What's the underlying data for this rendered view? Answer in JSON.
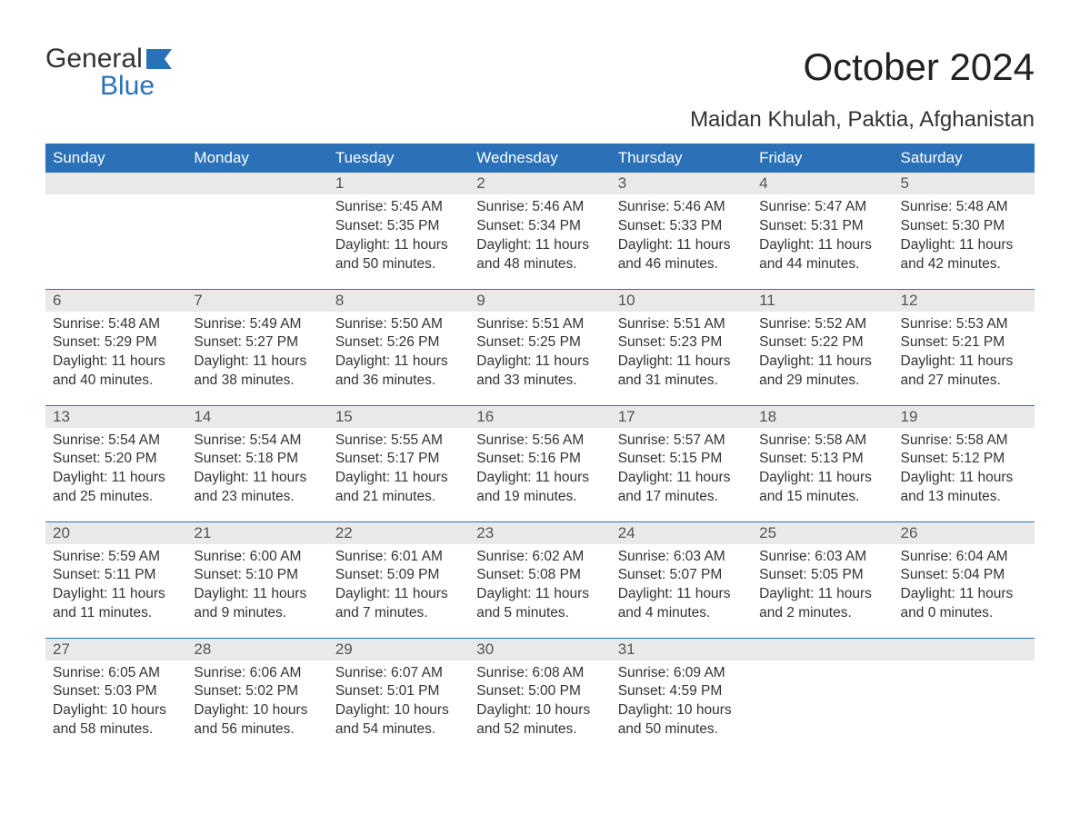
{
  "brand": {
    "word1": "General",
    "word2": "Blue",
    "accent_color": "#2a71b8"
  },
  "title": "October 2024",
  "location": "Maidan Khulah, Paktia, Afghanistan",
  "weekdays": [
    "Sunday",
    "Monday",
    "Tuesday",
    "Wednesday",
    "Thursday",
    "Friday",
    "Saturday"
  ],
  "colors": {
    "header_bg": "#2a71b8",
    "header_text": "#ffffff",
    "daynum_bg": "#e9e9e9",
    "border": "#2a71b8",
    "text": "#333333",
    "background": "#ffffff"
  },
  "typography": {
    "title_fontsize": 42,
    "subtitle_fontsize": 24,
    "weekday_fontsize": 17,
    "daynum_fontsize": 17,
    "body_fontsize": 15.5
  },
  "weeks": [
    [
      {
        "day": "",
        "sunrise": "",
        "sunset": "",
        "daylight": ""
      },
      {
        "day": "",
        "sunrise": "",
        "sunset": "",
        "daylight": ""
      },
      {
        "day": "1",
        "sunrise": "Sunrise: 5:45 AM",
        "sunset": "Sunset: 5:35 PM",
        "daylight": "Daylight: 11 hours and 50 minutes."
      },
      {
        "day": "2",
        "sunrise": "Sunrise: 5:46 AM",
        "sunset": "Sunset: 5:34 PM",
        "daylight": "Daylight: 11 hours and 48 minutes."
      },
      {
        "day": "3",
        "sunrise": "Sunrise: 5:46 AM",
        "sunset": "Sunset: 5:33 PM",
        "daylight": "Daylight: 11 hours and 46 minutes."
      },
      {
        "day": "4",
        "sunrise": "Sunrise: 5:47 AM",
        "sunset": "Sunset: 5:31 PM",
        "daylight": "Daylight: 11 hours and 44 minutes."
      },
      {
        "day": "5",
        "sunrise": "Sunrise: 5:48 AM",
        "sunset": "Sunset: 5:30 PM",
        "daylight": "Daylight: 11 hours and 42 minutes."
      }
    ],
    [
      {
        "day": "6",
        "sunrise": "Sunrise: 5:48 AM",
        "sunset": "Sunset: 5:29 PM",
        "daylight": "Daylight: 11 hours and 40 minutes."
      },
      {
        "day": "7",
        "sunrise": "Sunrise: 5:49 AM",
        "sunset": "Sunset: 5:27 PM",
        "daylight": "Daylight: 11 hours and 38 minutes."
      },
      {
        "day": "8",
        "sunrise": "Sunrise: 5:50 AM",
        "sunset": "Sunset: 5:26 PM",
        "daylight": "Daylight: 11 hours and 36 minutes."
      },
      {
        "day": "9",
        "sunrise": "Sunrise: 5:51 AM",
        "sunset": "Sunset: 5:25 PM",
        "daylight": "Daylight: 11 hours and 33 minutes."
      },
      {
        "day": "10",
        "sunrise": "Sunrise: 5:51 AM",
        "sunset": "Sunset: 5:23 PM",
        "daylight": "Daylight: 11 hours and 31 minutes."
      },
      {
        "day": "11",
        "sunrise": "Sunrise: 5:52 AM",
        "sunset": "Sunset: 5:22 PM",
        "daylight": "Daylight: 11 hours and 29 minutes."
      },
      {
        "day": "12",
        "sunrise": "Sunrise: 5:53 AM",
        "sunset": "Sunset: 5:21 PM",
        "daylight": "Daylight: 11 hours and 27 minutes."
      }
    ],
    [
      {
        "day": "13",
        "sunrise": "Sunrise: 5:54 AM",
        "sunset": "Sunset: 5:20 PM",
        "daylight": "Daylight: 11 hours and 25 minutes."
      },
      {
        "day": "14",
        "sunrise": "Sunrise: 5:54 AM",
        "sunset": "Sunset: 5:18 PM",
        "daylight": "Daylight: 11 hours and 23 minutes."
      },
      {
        "day": "15",
        "sunrise": "Sunrise: 5:55 AM",
        "sunset": "Sunset: 5:17 PM",
        "daylight": "Daylight: 11 hours and 21 minutes."
      },
      {
        "day": "16",
        "sunrise": "Sunrise: 5:56 AM",
        "sunset": "Sunset: 5:16 PM",
        "daylight": "Daylight: 11 hours and 19 minutes."
      },
      {
        "day": "17",
        "sunrise": "Sunrise: 5:57 AM",
        "sunset": "Sunset: 5:15 PM",
        "daylight": "Daylight: 11 hours and 17 minutes."
      },
      {
        "day": "18",
        "sunrise": "Sunrise: 5:58 AM",
        "sunset": "Sunset: 5:13 PM",
        "daylight": "Daylight: 11 hours and 15 minutes."
      },
      {
        "day": "19",
        "sunrise": "Sunrise: 5:58 AM",
        "sunset": "Sunset: 5:12 PM",
        "daylight": "Daylight: 11 hours and 13 minutes."
      }
    ],
    [
      {
        "day": "20",
        "sunrise": "Sunrise: 5:59 AM",
        "sunset": "Sunset: 5:11 PM",
        "daylight": "Daylight: 11 hours and 11 minutes."
      },
      {
        "day": "21",
        "sunrise": "Sunrise: 6:00 AM",
        "sunset": "Sunset: 5:10 PM",
        "daylight": "Daylight: 11 hours and 9 minutes."
      },
      {
        "day": "22",
        "sunrise": "Sunrise: 6:01 AM",
        "sunset": "Sunset: 5:09 PM",
        "daylight": "Daylight: 11 hours and 7 minutes."
      },
      {
        "day": "23",
        "sunrise": "Sunrise: 6:02 AM",
        "sunset": "Sunset: 5:08 PM",
        "daylight": "Daylight: 11 hours and 5 minutes."
      },
      {
        "day": "24",
        "sunrise": "Sunrise: 6:03 AM",
        "sunset": "Sunset: 5:07 PM",
        "daylight": "Daylight: 11 hours and 4 minutes."
      },
      {
        "day": "25",
        "sunrise": "Sunrise: 6:03 AM",
        "sunset": "Sunset: 5:05 PM",
        "daylight": "Daylight: 11 hours and 2 minutes."
      },
      {
        "day": "26",
        "sunrise": "Sunrise: 6:04 AM",
        "sunset": "Sunset: 5:04 PM",
        "daylight": "Daylight: 11 hours and 0 minutes."
      }
    ],
    [
      {
        "day": "27",
        "sunrise": "Sunrise: 6:05 AM",
        "sunset": "Sunset: 5:03 PM",
        "daylight": "Daylight: 10 hours and 58 minutes."
      },
      {
        "day": "28",
        "sunrise": "Sunrise: 6:06 AM",
        "sunset": "Sunset: 5:02 PM",
        "daylight": "Daylight: 10 hours and 56 minutes."
      },
      {
        "day": "29",
        "sunrise": "Sunrise: 6:07 AM",
        "sunset": "Sunset: 5:01 PM",
        "daylight": "Daylight: 10 hours and 54 minutes."
      },
      {
        "day": "30",
        "sunrise": "Sunrise: 6:08 AM",
        "sunset": "Sunset: 5:00 PM",
        "daylight": "Daylight: 10 hours and 52 minutes."
      },
      {
        "day": "31",
        "sunrise": "Sunrise: 6:09 AM",
        "sunset": "Sunset: 4:59 PM",
        "daylight": "Daylight: 10 hours and 50 minutes."
      },
      {
        "day": "",
        "sunrise": "",
        "sunset": "",
        "daylight": ""
      },
      {
        "day": "",
        "sunrise": "",
        "sunset": "",
        "daylight": ""
      }
    ]
  ]
}
